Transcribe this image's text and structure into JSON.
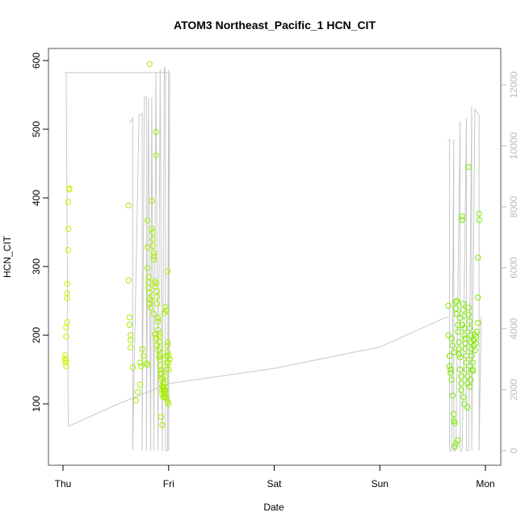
{
  "chart_data": {
    "type": "scatter",
    "title": "ATOM3 Northeast_Pacific_1 HCN_CIT",
    "xlabel": "Date",
    "ylabel": "HCN_CIT",
    "x_ticks": [
      "Thu",
      "Fri",
      "Sat",
      "Sun",
      "Mon"
    ],
    "x_range_days": [
      -0.05,
      4.1
    ],
    "ylim": [
      40,
      600
    ],
    "y_ticks": [
      100,
      200,
      300,
      400,
      500,
      600
    ],
    "y2lim": [
      -200,
      12700
    ],
    "y2_ticks": [
      0,
      2000,
      4000,
      6000,
      8000,
      10000,
      12000
    ],
    "grid": false,
    "colors": {
      "frame": "#555555",
      "altitude_line": "#c8c8c8",
      "early_points": "#c8f000",
      "mid_points": "#a6ee00",
      "late_points": "#7eea00",
      "right_axis": "#bbbbbb"
    },
    "series": [
      {
        "kind": "points",
        "axis": "left",
        "points": [
          [
            0.02,
            166
          ],
          [
            0.02,
            171
          ],
          [
            0.02,
            160
          ],
          [
            0.03,
            155
          ],
          [
            0.03,
            163
          ],
          [
            0.03,
            198
          ],
          [
            0.03,
            211
          ],
          [
            0.04,
            219
          ],
          [
            0.04,
            254
          ],
          [
            0.04,
            261
          ],
          [
            0.04,
            275
          ],
          [
            0.05,
            324
          ],
          [
            0.05,
            355
          ],
          [
            0.05,
            394
          ],
          [
            0.06,
            412
          ],
          [
            0.06,
            414
          ],
          [
            0.62,
            389
          ],
          [
            0.62,
            280
          ],
          [
            0.63,
            226
          ],
          [
            0.63,
            215
          ],
          [
            0.64,
            200
          ],
          [
            0.64,
            193
          ],
          [
            0.64,
            182
          ],
          [
            0.66,
            153
          ],
          [
            0.69,
            105
          ],
          [
            0.71,
            117
          ],
          [
            0.73,
            128
          ],
          [
            0.73,
            160
          ],
          [
            0.74,
            155
          ],
          [
            0.75,
            180
          ],
          [
            0.76,
            170
          ],
          [
            0.79,
            159
          ],
          [
            0.8,
            157
          ],
          [
            0.8,
            367
          ],
          [
            0.8,
            328
          ],
          [
            0.8,
            298
          ],
          [
            0.81,
            285
          ],
          [
            0.81,
            277
          ],
          [
            0.81,
            269
          ],
          [
            0.82,
            262
          ],
          [
            0.82,
            253
          ],
          [
            0.82,
            246
          ],
          [
            0.83,
            251
          ],
          [
            0.83,
            240
          ],
          [
            0.84,
            355
          ],
          [
            0.84,
            396
          ],
          [
            0.85,
            350
          ],
          [
            0.85,
            340
          ],
          [
            0.85,
            330
          ],
          [
            0.86,
            320
          ],
          [
            0.86,
            315
          ],
          [
            0.86,
            310
          ],
          [
            0.87,
            279
          ],
          [
            0.87,
            271
          ],
          [
            0.88,
            496
          ],
          [
            0.88,
            462
          ],
          [
            0.88,
            276
          ],
          [
            0.89,
            264
          ],
          [
            0.89,
            256
          ],
          [
            0.89,
            246
          ],
          [
            0.9,
            225
          ],
          [
            0.9,
            220
          ],
          [
            0.9,
            208
          ],
          [
            0.91,
            202
          ],
          [
            0.91,
            198
          ],
          [
            0.91,
            190
          ],
          [
            0.92,
            180
          ],
          [
            0.92,
            170
          ],
          [
            0.92,
            165
          ],
          [
            0.93,
            150
          ],
          [
            0.93,
            143
          ],
          [
            0.93,
            135
          ],
          [
            0.94,
            126
          ],
          [
            0.94,
            120
          ],
          [
            0.94,
            115
          ],
          [
            0.95,
            110
          ],
          [
            0.95,
            130
          ],
          [
            0.95,
            125
          ],
          [
            0.96,
            120
          ],
          [
            0.96,
            115
          ],
          [
            0.96,
            110
          ],
          [
            0.97,
            120
          ],
          [
            0.97,
            130
          ],
          [
            0.97,
            140
          ],
          [
            0.98,
            150
          ],
          [
            0.98,
            160
          ],
          [
            0.98,
            170
          ],
          [
            0.99,
            175
          ],
          [
            0.99,
            185
          ],
          [
            0.99,
            190
          ],
          [
            1.0,
            170
          ],
          [
            1.0,
            160
          ],
          [
            1.0,
            150
          ],
          [
            1.01,
            165
          ],
          [
            0.93,
            81
          ],
          [
            0.94,
            69
          ],
          [
            0.96,
            232
          ],
          [
            0.97,
            241
          ],
          [
            0.98,
            236
          ],
          [
            0.99,
            293
          ],
          [
            0.86,
            231
          ],
          [
            0.87,
            201
          ],
          [
            0.88,
            196
          ],
          [
            0.89,
            186
          ],
          [
            0.9,
            178
          ],
          [
            0.91,
            168
          ],
          [
            0.92,
            155
          ],
          [
            0.93,
            145
          ],
          [
            0.94,
            138
          ],
          [
            0.95,
            123
          ],
          [
            0.96,
            118
          ],
          [
            0.97,
            112
          ],
          [
            0.98,
            108
          ],
          [
            0.99,
            103
          ],
          [
            1.0,
            100
          ],
          [
            0.82,
            595
          ]
        ]
      },
      {
        "kind": "points",
        "axis": "left",
        "points": [
          [
            3.65,
            243
          ],
          [
            3.65,
            200
          ],
          [
            3.66,
            170
          ],
          [
            3.66,
            155
          ],
          [
            3.67,
            150
          ],
          [
            3.67,
            145
          ],
          [
            3.68,
            135
          ],
          [
            3.69,
            112
          ],
          [
            3.7,
            85
          ],
          [
            3.7,
            75
          ],
          [
            3.71,
            72
          ],
          [
            3.71,
            38
          ],
          [
            3.72,
            248
          ],
          [
            3.72,
            239
          ],
          [
            3.73,
            250
          ],
          [
            3.73,
            231
          ],
          [
            3.74,
            215
          ],
          [
            3.74,
            205
          ],
          [
            3.75,
            190
          ],
          [
            3.75,
            180
          ],
          [
            3.75,
            172
          ],
          [
            3.76,
            168
          ],
          [
            3.76,
            150
          ],
          [
            3.77,
            140
          ],
          [
            3.77,
            130
          ],
          [
            3.77,
            120
          ],
          [
            3.78,
            373
          ],
          [
            3.78,
            368
          ],
          [
            3.79,
            246
          ],
          [
            3.79,
            237
          ],
          [
            3.8,
            228
          ],
          [
            3.8,
            210
          ],
          [
            3.8,
            200
          ],
          [
            3.81,
            195
          ],
          [
            3.81,
            188
          ],
          [
            3.81,
            180
          ],
          [
            3.82,
            170
          ],
          [
            3.82,
            160
          ],
          [
            3.82,
            150
          ],
          [
            3.83,
            140
          ],
          [
            3.83,
            130
          ],
          [
            3.84,
            445
          ],
          [
            3.84,
            240
          ],
          [
            3.84,
            230
          ],
          [
            3.85,
            220
          ],
          [
            3.85,
            210
          ],
          [
            3.86,
            200
          ],
          [
            3.86,
            190
          ],
          [
            3.87,
            180
          ],
          [
            3.87,
            170
          ],
          [
            3.88,
            160
          ],
          [
            3.88,
            150
          ],
          [
            3.89,
            193
          ],
          [
            3.9,
            201
          ],
          [
            3.91,
            197
          ],
          [
            3.92,
            205
          ],
          [
            3.93,
            218
          ],
          [
            3.93,
            255
          ],
          [
            3.93,
            313
          ],
          [
            3.94,
            368
          ],
          [
            3.94,
            377
          ],
          [
            3.72,
            42
          ],
          [
            3.74,
            47
          ],
          [
            3.68,
            195
          ],
          [
            3.69,
            185
          ],
          [
            3.7,
            175
          ],
          [
            3.76,
            225
          ],
          [
            3.78,
            215
          ],
          [
            3.79,
            110
          ],
          [
            3.8,
            100
          ],
          [
            3.83,
            95
          ],
          [
            3.85,
            125
          ],
          [
            3.86,
            135
          ],
          [
            3.88,
            148
          ],
          [
            3.89,
            185
          ],
          [
            3.9,
            178
          ],
          [
            3.91,
            188
          ]
        ]
      },
      {
        "kind": "line",
        "axis": "right",
        "name": "",
        "points": [
          [
            0.02,
            12400
          ],
          [
            0.03,
            12400
          ],
          [
            0.05,
            800
          ],
          [
            0.5,
            1500
          ],
          [
            1.0,
            2200
          ],
          [
            2.0,
            2700
          ],
          [
            3.0,
            3400
          ],
          [
            3.58,
            4300
          ],
          [
            3.65,
            4400
          ],
          [
            0.02,
            12400
          ],
          [
            0.3,
            12400
          ],
          [
            0.6,
            12400
          ],
          [
            1.0,
            12400
          ]
        ]
      }
    ],
    "altitude_spikes": [
      [
        0.63,
        10750
      ],
      [
        0.66,
        10900
      ],
      [
        0.72,
        11000
      ],
      [
        0.75,
        11050
      ],
      [
        0.77,
        11600
      ],
      [
        0.79,
        11600
      ],
      [
        0.81,
        11550
      ],
      [
        0.83,
        0
      ],
      [
        0.84,
        11600
      ],
      [
        0.86,
        400
      ],
      [
        0.88,
        12400
      ],
      [
        0.9,
        0
      ],
      [
        0.92,
        12500
      ],
      [
        0.94,
        0
      ],
      [
        0.96,
        12600
      ],
      [
        0.97,
        12400
      ],
      [
        0.99,
        0
      ],
      [
        1.0,
        12500
      ],
      [
        1.01,
        12400
      ],
      [
        3.64,
        10200
      ],
      [
        3.66,
        10200
      ],
      [
        3.68,
        0
      ],
      [
        3.7,
        10200
      ],
      [
        3.72,
        0
      ],
      [
        3.76,
        10800
      ],
      [
        3.78,
        0
      ],
      [
        3.82,
        10900
      ],
      [
        3.84,
        0
      ],
      [
        3.87,
        11300
      ],
      [
        3.9,
        11200
      ],
      [
        3.94,
        11000
      ],
      [
        3.96,
        4400
      ]
    ]
  }
}
